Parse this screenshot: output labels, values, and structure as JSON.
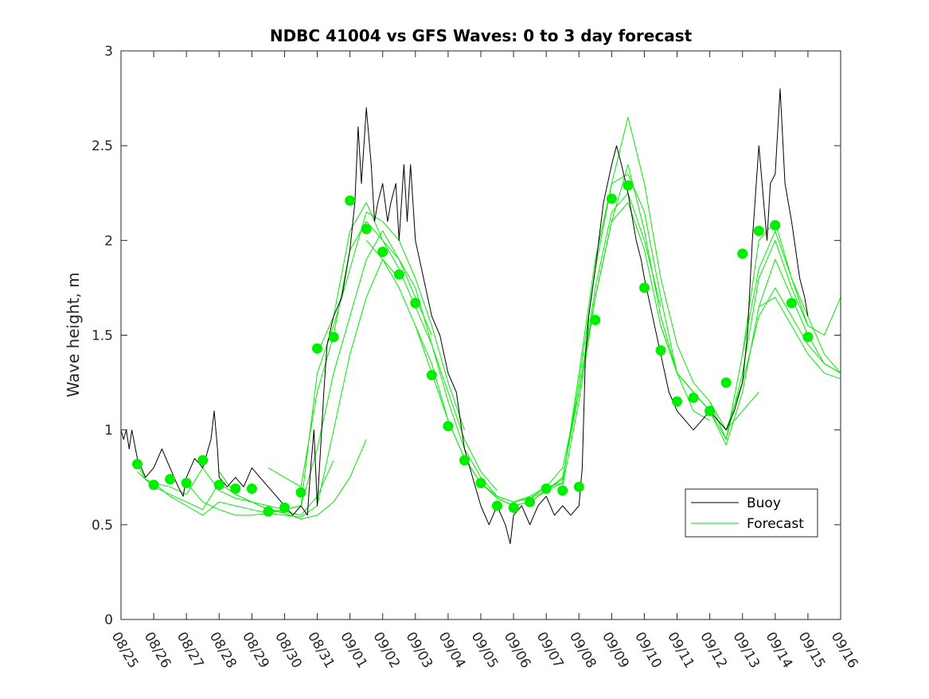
{
  "colors": {
    "buoy": "#000000",
    "forecast": "#00ee00",
    "axis": "#262626",
    "background": "#ffffff"
  },
  "chart_data": {
    "type": "line",
    "title": "NDBC 41004 vs GFS Waves: 0 to 3 day forecast",
    "xlabel": "",
    "ylabel": "Wave height, m",
    "xlim": [
      0,
      22
    ],
    "ylim": [
      0,
      3
    ],
    "x_tick_labels": [
      "08/25",
      "08/26",
      "08/27",
      "08/28",
      "08/29",
      "08/30",
      "08/31",
      "09/01",
      "09/02",
      "09/03",
      "09/04",
      "09/05",
      "09/06",
      "09/07",
      "09/08",
      "09/09",
      "09/10",
      "09/11",
      "09/12",
      "09/13",
      "09/14",
      "09/15",
      "09/16"
    ],
    "y_ticks": [
      0,
      0.5,
      1,
      1.5,
      2,
      2.5,
      3
    ],
    "y_tick_labels": [
      "0",
      "0.5",
      "1",
      "1.5",
      "2",
      "2.5",
      "3"
    ],
    "legend": {
      "position": "lower-right",
      "entries": [
        "Buoy",
        "Forecast"
      ]
    },
    "series": [
      {
        "name": "Buoy",
        "style": "line-black",
        "x": [
          0,
          0.08,
          0.16,
          0.25,
          0.33,
          0.5,
          0.75,
          1,
          1.25,
          1.5,
          1.75,
          1.9,
          2,
          2.25,
          2.5,
          2.75,
          2.85,
          2.95,
          3,
          3.25,
          3.5,
          3.75,
          4,
          4.25,
          4.5,
          4.75,
          5,
          5.25,
          5.5,
          5.7,
          5.8,
          5.9,
          6,
          6.1,
          6.2,
          6.3,
          6.5,
          6.75,
          7,
          7.15,
          7.25,
          7.35,
          7.5,
          7.65,
          7.75,
          7.85,
          8,
          8.15,
          8.25,
          8.4,
          8.5,
          8.65,
          8.75,
          8.85,
          9,
          9.25,
          9.5,
          9.75,
          10,
          10.25,
          10.5,
          10.75,
          11,
          11.25,
          11.5,
          11.75,
          11.9,
          12,
          12.25,
          12.5,
          12.75,
          13,
          13.25,
          13.5,
          13.75,
          14,
          14.1,
          14.2,
          14.3,
          14.5,
          14.75,
          15,
          15.15,
          15.3,
          15.5,
          15.65,
          15.75,
          15.9,
          16,
          16.25,
          16.5,
          16.75,
          17,
          17.25,
          17.5,
          17.75,
          18,
          18.25,
          18.5,
          18.75,
          19,
          19.15,
          19.3,
          19.5,
          19.65,
          19.75,
          19.85,
          20,
          20.15,
          20.3,
          20.5,
          20.75,
          20.9,
          21
        ],
        "values": [
          1.0,
          0.95,
          1.0,
          0.9,
          1.0,
          0.85,
          0.75,
          0.8,
          0.9,
          0.8,
          0.7,
          0.65,
          0.75,
          0.85,
          0.8,
          0.95,
          1.1,
          0.9,
          0.75,
          0.7,
          0.75,
          0.7,
          0.8,
          0.75,
          0.7,
          0.65,
          0.6,
          0.55,
          0.6,
          0.55,
          0.8,
          1.0,
          0.6,
          0.9,
          1.2,
          1.45,
          1.6,
          1.7,
          1.95,
          2.2,
          2.6,
          2.3,
          2.7,
          2.4,
          2.1,
          2.2,
          2.3,
          2.1,
          2.2,
          2.3,
          2.0,
          2.4,
          2.1,
          2.4,
          2.0,
          1.8,
          1.6,
          1.5,
          1.3,
          1.2,
          0.9,
          0.75,
          0.6,
          0.5,
          0.6,
          0.5,
          0.4,
          0.55,
          0.6,
          0.5,
          0.6,
          0.65,
          0.55,
          0.6,
          0.55,
          0.6,
          0.8,
          1.4,
          1.6,
          1.85,
          2.2,
          2.4,
          2.5,
          2.4,
          2.25,
          2.1,
          2.0,
          1.9,
          1.8,
          1.6,
          1.4,
          1.2,
          1.1,
          1.05,
          1.0,
          1.05,
          1.1,
          1.05,
          1.0,
          1.1,
          1.25,
          1.5,
          2.0,
          2.5,
          2.2,
          2.0,
          2.3,
          2.35,
          2.8,
          2.3,
          2.1,
          1.8,
          1.7,
          1.6
        ]
      },
      {
        "name": "Forecast",
        "style": "line-green",
        "x": [
          0.5,
          0.75,
          1,
          1.5,
          2,
          2.5,
          3,
          3.5,
          4,
          4.5,
          5,
          5.5,
          6,
          6.5
        ],
        "values": [
          0.82,
          0.74,
          0.72,
          0.7,
          0.66,
          0.8,
          0.68,
          0.64,
          0.62,
          0.58,
          0.57,
          0.55,
          0.65,
          0.84
        ]
      },
      {
        "name": "Forecast",
        "style": "line-green",
        "x": [
          0.5,
          1,
          1.5,
          2,
          2.5,
          3,
          3.5,
          4,
          4.5,
          5,
          5.5,
          6,
          6.5,
          7,
          7.5
        ],
        "values": [
          0.78,
          0.7,
          0.66,
          0.62,
          0.58,
          0.72,
          0.66,
          0.62,
          0.58,
          0.56,
          0.53,
          0.55,
          0.62,
          0.75,
          0.95
        ]
      },
      {
        "name": "Forecast",
        "style": "line-green",
        "x": [
          1,
          1.5,
          2,
          2.5,
          3,
          3.5,
          4,
          4.5,
          5,
          5.5,
          6,
          6.5,
          7,
          7.5,
          8,
          8.5
        ],
        "values": [
          0.72,
          0.65,
          0.6,
          0.55,
          0.62,
          0.6,
          0.58,
          0.56,
          0.55,
          0.54,
          0.6,
          1.0,
          1.4,
          1.7,
          1.9,
          1.8
        ]
      },
      {
        "name": "Forecast",
        "style": "line-green",
        "x": [
          2,
          2.5,
          3,
          3.5,
          4,
          4.5,
          5,
          5.5,
          6,
          6.5,
          7,
          7.5,
          8,
          8.5,
          9,
          9.5
        ],
        "values": [
          0.72,
          0.62,
          0.58,
          0.55,
          0.55,
          0.56,
          0.58,
          0.6,
          0.9,
          1.3,
          1.6,
          1.9,
          2.05,
          1.9,
          1.7,
          1.5
        ]
      },
      {
        "name": "Forecast",
        "style": "line-green",
        "x": [
          3,
          3.5,
          4,
          4.5,
          5,
          5.5,
          6,
          6.5,
          7,
          7.5,
          8,
          8.5,
          9,
          9.5,
          10,
          10.5
        ],
        "values": [
          0.78,
          0.66,
          0.62,
          0.6,
          0.58,
          0.6,
          1.3,
          1.55,
          1.85,
          2.15,
          2.1,
          2.0,
          1.8,
          1.55,
          1.25,
          1.0
        ]
      },
      {
        "name": "Forecast",
        "style": "line-green",
        "x": [
          4.5,
          5,
          5.5,
          6,
          6.5,
          7,
          7.5,
          8,
          8.5,
          9,
          9.5,
          10,
          10.5,
          11,
          11.5
        ],
        "values": [
          0.8,
          0.75,
          0.7,
          1.2,
          1.5,
          1.95,
          2.1,
          2.0,
          1.9,
          1.75,
          1.45,
          1.2,
          0.95,
          0.78,
          0.68
        ]
      },
      {
        "name": "Forecast",
        "style": "line-green",
        "x": [
          6,
          6.5,
          7,
          7.5,
          8,
          8.5,
          9,
          9.5,
          10,
          10.5,
          11,
          11.5,
          12,
          12.5,
          13,
          13.5
        ],
        "values": [
          1.4,
          1.6,
          2.05,
          2.2,
          2.0,
          1.85,
          1.65,
          1.45,
          1.15,
          0.9,
          0.75,
          0.65,
          0.62,
          0.65,
          0.7,
          0.72
        ]
      },
      {
        "name": "Forecast",
        "style": "line-green",
        "x": [
          7.5,
          8,
          8.5,
          9,
          9.5,
          10,
          10.5,
          11,
          11.5,
          12,
          12.5,
          13,
          13.5,
          14,
          14.5,
          15
        ],
        "values": [
          2.0,
          1.9,
          1.75,
          1.55,
          1.3,
          1.05,
          0.85,
          0.72,
          0.65,
          0.62,
          0.64,
          0.7,
          0.8,
          1.2,
          1.7,
          2.1
        ]
      },
      {
        "name": "Forecast",
        "style": "line-green",
        "x": [
          9,
          9.5,
          10,
          10.5,
          11,
          11.5,
          12,
          12.5,
          13,
          13.5,
          14,
          14.5,
          15,
          15.5,
          16,
          16.5
        ],
        "values": [
          1.55,
          1.35,
          1.05,
          0.85,
          0.72,
          0.64,
          0.6,
          0.62,
          0.68,
          0.75,
          1.2,
          1.75,
          2.15,
          2.25,
          2.0,
          1.65
        ]
      },
      {
        "name": "Forecast",
        "style": "line-green",
        "x": [
          10.5,
          11,
          11.5,
          12,
          12.5,
          13,
          13.5,
          14,
          14.5,
          15,
          15.5,
          16,
          16.5,
          17,
          17.5,
          18
        ],
        "values": [
          0.85,
          0.72,
          0.64,
          0.6,
          0.62,
          0.68,
          0.72,
          1.3,
          1.9,
          2.3,
          2.35,
          2.15,
          1.7,
          1.3,
          1.1,
          1.05
        ]
      },
      {
        "name": "Forecast",
        "style": "line-green",
        "x": [
          12,
          12.5,
          13,
          13.5,
          14,
          14.5,
          15,
          15.5,
          16,
          16.5,
          17,
          17.5,
          18,
          18.5,
          19,
          19.5
        ],
        "values": [
          0.62,
          0.64,
          0.68,
          0.74,
          1.25,
          1.85,
          2.3,
          2.65,
          2.3,
          1.8,
          1.45,
          1.25,
          1.15,
          1.0,
          1.1,
          1.2
        ]
      },
      {
        "name": "Forecast",
        "style": "line-green",
        "x": [
          13.5,
          14,
          14.5,
          15,
          15.5,
          16,
          16.5,
          17,
          17.5,
          18,
          18.5,
          19,
          19.5,
          20,
          20.5,
          21
        ],
        "values": [
          0.7,
          1.15,
          1.7,
          2.1,
          2.4,
          2.05,
          1.6,
          1.3,
          1.2,
          1.1,
          0.95,
          1.3,
          1.8,
          2.0,
          1.75,
          1.55
        ]
      },
      {
        "name": "Forecast",
        "style": "line-green",
        "x": [
          15,
          15.5,
          16,
          16.5,
          17,
          17.5,
          18,
          18.5,
          19,
          19.5,
          20,
          20.5,
          21,
          21.5,
          22
        ],
        "values": [
          2.1,
          2.2,
          1.95,
          1.55,
          1.3,
          1.2,
          1.1,
          0.92,
          1.2,
          1.65,
          1.9,
          1.7,
          1.5,
          1.35,
          1.3
        ]
      },
      {
        "name": "Forecast",
        "style": "line-green",
        "x": [
          16.5,
          17,
          17.5,
          18,
          18.5,
          19,
          19.5,
          20,
          20.5,
          21,
          21.5,
          22
        ],
        "values": [
          1.55,
          1.3,
          1.2,
          1.1,
          1.0,
          1.25,
          1.6,
          1.75,
          1.6,
          1.45,
          1.35,
          1.3
        ]
      },
      {
        "name": "Forecast",
        "style": "line-green",
        "x": [
          18,
          18.5,
          19,
          19.5,
          20,
          20.5,
          21,
          21.5,
          22
        ],
        "values": [
          1.15,
          0.95,
          1.4,
          2.0,
          2.1,
          1.8,
          1.6,
          1.4,
          1.3
        ]
      },
      {
        "name": "Forecast",
        "style": "line-green",
        "x": [
          19,
          19.5,
          20,
          20.5,
          21,
          21.5,
          22
        ],
        "values": [
          1.4,
          1.85,
          2.05,
          1.8,
          1.55,
          1.5,
          1.7
        ]
      },
      {
        "name": "Forecast",
        "style": "line-green",
        "x": [
          19.5,
          20,
          20.5,
          21,
          21.5,
          22
        ],
        "values": [
          1.65,
          1.7,
          1.55,
          1.4,
          1.3,
          1.27
        ]
      },
      {
        "name": "Forecast markers",
        "style": "markers-green",
        "x": [
          0.5,
          1,
          1.5,
          2,
          2.5,
          3,
          3.5,
          4,
          4.5,
          5,
          5.5,
          6,
          6.5,
          7,
          7.5,
          8,
          8.5,
          9,
          9.5,
          10,
          10.5,
          11,
          11.5,
          12,
          12.5,
          13,
          13.5,
          14,
          14.5,
          15,
          15.5,
          16,
          16.5,
          17,
          17.5,
          18,
          18.5,
          19,
          19.5,
          20,
          20.5,
          21
        ],
        "values": [
          0.82,
          0.71,
          0.74,
          0.72,
          0.84,
          0.71,
          0.69,
          0.69,
          0.57,
          0.59,
          0.67,
          1.43,
          1.49,
          2.21,
          2.06,
          1.94,
          1.82,
          1.67,
          1.29,
          1.02,
          0.84,
          0.72,
          0.6,
          0.59,
          0.62,
          0.69,
          0.68,
          0.7,
          1.58,
          2.22,
          2.29,
          1.75,
          1.42,
          1.15,
          1.17,
          1.1,
          1.25,
          1.93,
          2.05,
          2.08,
          1.67,
          1.49
        ]
      }
    ]
  }
}
